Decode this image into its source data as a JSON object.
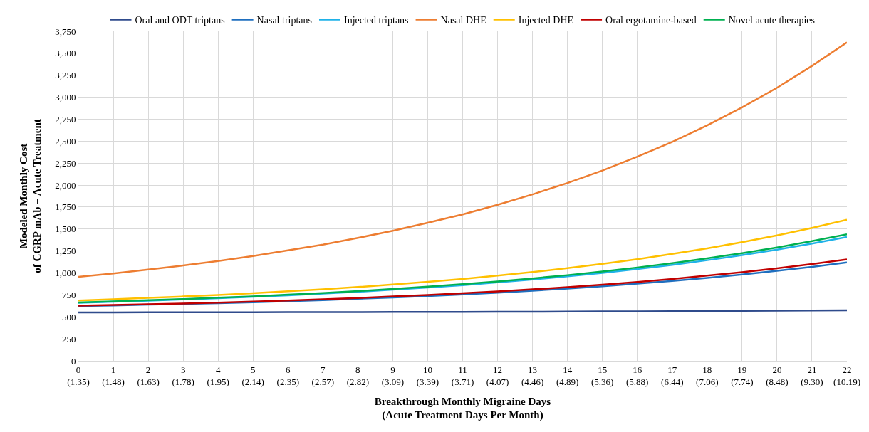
{
  "chart_data": {
    "type": "line",
    "xlabel": "Breakthrough Monthly Migraine Days\n(Acute Treatment Days Per Month)",
    "ylabel": "Modeled Monthly Cost\nof CGRP mAb + Acute Treatment",
    "categories": [
      "0\n(1.35)",
      "1\n(1.48)",
      "2\n(1.63)",
      "3\n(1.78)",
      "4\n(1.95)",
      "5\n(2.14)",
      "6\n(2.35)",
      "7\n(2.57)",
      "8\n(2.82)",
      "9\n(3.09)",
      "10\n(3.39)",
      "11\n(3.71)",
      "12\n(4.07)",
      "13\n(4.46)",
      "14\n(4.89)",
      "15\n(5.36)",
      "16\n(5.88)",
      "17\n(6.44)",
      "18\n(7.06)",
      "19\n(7.74)",
      "20\n(8.48)",
      "21\n(9.30)",
      "22\n(10.19)"
    ],
    "series": [
      {
        "name": "Oral and ODT triptans",
        "color": "#2f4b8c",
        "values": [
          551,
          551,
          552,
          552,
          552,
          553,
          554,
          554,
          555,
          556,
          556,
          557,
          558,
          559,
          561,
          562,
          563,
          565,
          567,
          569,
          571,
          573,
          576
        ]
      },
      {
        "name": "Nasal triptans",
        "color": "#1f6fbf",
        "values": [
          623,
          630,
          639,
          647,
          657,
          667,
          679,
          691,
          706,
          721,
          738,
          756,
          776,
          798,
          822,
          848,
          878,
          909,
          944,
          982,
          1024,
          1070,
          1120
        ]
      },
      {
        "name": "Injected triptans",
        "color": "#1fb2e8",
        "values": [
          661,
          672,
          685,
          698,
          712,
          728,
          746,
          765,
          786,
          809,
          834,
          861,
          892,
          925,
          961,
          1001,
          1045,
          1092,
          1145,
          1203,
          1265,
          1335,
          1410
        ]
      },
      {
        "name": "Nasal DHE",
        "color": "#ed7d31",
        "values": [
          955,
          994,
          1039,
          1085,
          1136,
          1193,
          1257,
          1323,
          1399,
          1480,
          1571,
          1667,
          1776,
          1894,
          2024,
          2166,
          2323,
          2492,
          2679,
          2885,
          3108,
          3356,
          3624
        ]
      },
      {
        "name": "Injected DHE",
        "color": "#ffc000",
        "values": [
          687,
          701,
          716,
          732,
          749,
          769,
          791,
          814,
          840,
          868,
          899,
          932,
          970,
          1010,
          1055,
          1103,
          1157,
          1216,
          1280,
          1350,
          1427,
          1512,
          1605
        ]
      },
      {
        "name": "Oral ergotamine-based",
        "color": "#c00000",
        "values": [
          628,
          635,
          644,
          653,
          663,
          675,
          687,
          700,
          715,
          732,
          749,
          769,
          790,
          813,
          839,
          867,
          898,
          932,
          969,
          1009,
          1053,
          1102,
          1155
        ]
      },
      {
        "name": "Novel acute therapies",
        "color": "#00b050",
        "values": [
          665,
          677,
          690,
          703,
          718,
          734,
          753,
          772,
          794,
          818,
          844,
          872,
          904,
          938,
          975,
          1017,
          1062,
          1111,
          1166,
          1225,
          1290,
          1362,
          1440
        ]
      }
    ],
    "ylim": [
      0,
      3750
    ],
    "yticks": [
      0,
      250,
      500,
      750,
      {
        "value": 1000,
        "label": "1,000"
      },
      {
        "value": 1250,
        "label": "1,250"
      },
      {
        "value": 1500,
        "label": "1,500"
      },
      {
        "value": 1750,
        "label": "1,750"
      },
      {
        "value": 2000,
        "label": "2,000"
      },
      {
        "value": 2250,
        "label": "2,250"
      },
      {
        "value": 2500,
        "label": "2,500"
      },
      {
        "value": 2750,
        "label": "2,750"
      },
      {
        "value": 3000,
        "label": "3,000"
      },
      {
        "value": 3250,
        "label": "3,250"
      },
      {
        "value": 3500,
        "label": "3,500"
      },
      {
        "value": 3750,
        "label": "3,750"
      }
    ],
    "grid": true,
    "legend": "top",
    "marker": "none",
    "line_style": "solid"
  }
}
